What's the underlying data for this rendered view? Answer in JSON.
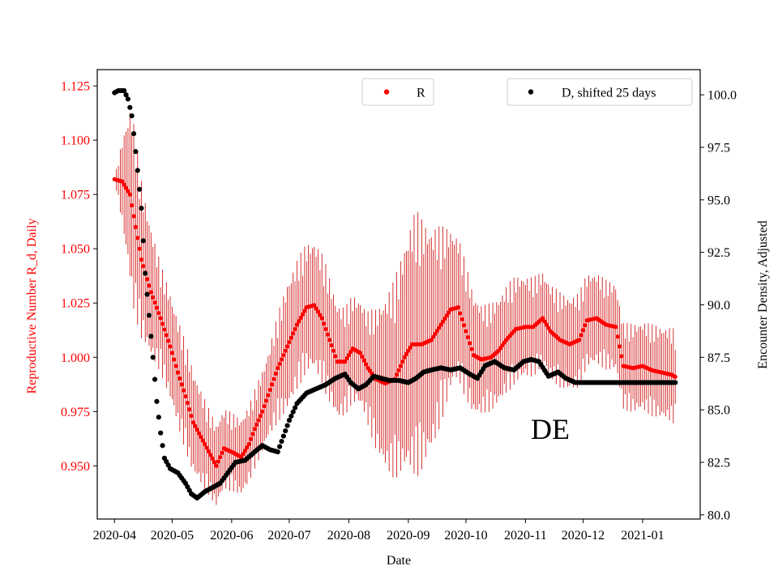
{
  "chart_data": {
    "type": "scatter",
    "xlabel": "Date",
    "ylabel_left": "Reproductive Number R_d, Daily",
    "ylabel_right": "Encounter Density, Adjusted",
    "annotation": "DE",
    "colors": {
      "left_axis": "#ff0000",
      "right_axis": "#000000",
      "R": "#ff0000",
      "D": "#000000",
      "errorbar": "#cc0000"
    },
    "x_range": [
      "2020-03-23",
      "2021-01-31"
    ],
    "x_ticks": [
      {
        "date": "2020-04-01",
        "label": "2020-04"
      },
      {
        "date": "2020-05-01",
        "label": "2020-05"
      },
      {
        "date": "2020-06-01",
        "label": "2020-06"
      },
      {
        "date": "2020-07-01",
        "label": "2020-07"
      },
      {
        "date": "2020-08-01",
        "label": "2020-08"
      },
      {
        "date": "2020-09-01",
        "label": "2020-09"
      },
      {
        "date": "2020-10-01",
        "label": "2020-10"
      },
      {
        "date": "2020-11-01",
        "label": "2020-11"
      },
      {
        "date": "2020-12-01",
        "label": "2020-12"
      },
      {
        "date": "2021-01-01",
        "label": "2021-01"
      }
    ],
    "ylim_left": [
      0.9255,
      1.1325
    ],
    "y_ticks_left": [
      0.95,
      0.975,
      1.0,
      1.025,
      1.05,
      1.075,
      1.1,
      1.125
    ],
    "y_tick_labels_left": [
      "0.950",
      "0.975",
      "1.000",
      "1.025",
      "1.050",
      "1.075",
      "1.100",
      "1.125"
    ],
    "ylim_right": [
      79.8,
      101.2
    ],
    "y_ticks_right": [
      80.0,
      82.5,
      85.0,
      87.5,
      90.0,
      92.5,
      95.0,
      97.5,
      100.0
    ],
    "y_tick_labels_right": [
      "80.0",
      "82.5",
      "85.0",
      "87.5",
      "90.0",
      "92.5",
      "95.0",
      "97.5",
      "100.0"
    ],
    "legends": [
      {
        "label": "R",
        "series": "R",
        "location": "upper-center"
      },
      {
        "label": "D, shifted 25 days",
        "series": "D",
        "location": "upper-right"
      }
    ],
    "series": [
      {
        "name": "R",
        "axis": "left",
        "marker": "dot",
        "points": [
          [
            "2020-04-01",
            1.082
          ],
          [
            "2020-04-05",
            1.081
          ],
          [
            "2020-04-09",
            1.075
          ],
          [
            "2020-04-12",
            1.06
          ],
          [
            "2020-04-15",
            1.045
          ],
          [
            "2020-04-20",
            1.03
          ],
          [
            "2020-04-25",
            1.018
          ],
          [
            "2020-04-30",
            1.005
          ],
          [
            "2020-05-04",
            0.993
          ],
          [
            "2020-05-08",
            0.982
          ],
          [
            "2020-05-12",
            0.97
          ],
          [
            "2020-05-18",
            0.96
          ],
          [
            "2020-05-24",
            0.95
          ],
          [
            "2020-05-28",
            0.958
          ],
          [
            "2020-06-02",
            0.956
          ],
          [
            "2020-06-06",
            0.954
          ],
          [
            "2020-06-10",
            0.96
          ],
          [
            "2020-06-13",
            0.967
          ],
          [
            "2020-06-17",
            0.975
          ],
          [
            "2020-06-21",
            0.985
          ],
          [
            "2020-06-25",
            0.995
          ],
          [
            "2020-06-30",
            1.005
          ],
          [
            "2020-07-05",
            1.015
          ],
          [
            "2020-07-10",
            1.023
          ],
          [
            "2020-07-14",
            1.024
          ],
          [
            "2020-07-18",
            1.018
          ],
          [
            "2020-07-22",
            1.008
          ],
          [
            "2020-07-26",
            0.998
          ],
          [
            "2020-07-30",
            0.998
          ],
          [
            "2020-08-03",
            1.004
          ],
          [
            "2020-08-07",
            1.002
          ],
          [
            "2020-08-11",
            0.995
          ],
          [
            "2020-08-15",
            0.99
          ],
          [
            "2020-08-20",
            0.988
          ],
          [
            "2020-08-25",
            0.99
          ],
          [
            "2020-08-30",
            1.0
          ],
          [
            "2020-09-03",
            1.006
          ],
          [
            "2020-09-08",
            1.006
          ],
          [
            "2020-09-13",
            1.008
          ],
          [
            "2020-09-18",
            1.015
          ],
          [
            "2020-09-23",
            1.022
          ],
          [
            "2020-09-27",
            1.023
          ],
          [
            "2020-10-01",
            1.012
          ],
          [
            "2020-10-05",
            1.001
          ],
          [
            "2020-10-09",
            0.999
          ],
          [
            "2020-10-14",
            1.0
          ],
          [
            "2020-10-18",
            1.003
          ],
          [
            "2020-10-22",
            1.008
          ],
          [
            "2020-10-27",
            1.013
          ],
          [
            "2020-11-01",
            1.014
          ],
          [
            "2020-11-05",
            1.014
          ],
          [
            "2020-11-10",
            1.018
          ],
          [
            "2020-11-14",
            1.012
          ],
          [
            "2020-11-19",
            1.008
          ],
          [
            "2020-11-24",
            1.006
          ],
          [
            "2020-11-29",
            1.008
          ],
          [
            "2020-12-03",
            1.017
          ],
          [
            "2020-12-08",
            1.018
          ],
          [
            "2020-12-13",
            1.015
          ],
          [
            "2020-12-18",
            1.014
          ],
          [
            "2020-12-22",
            0.996
          ],
          [
            "2020-12-27",
            0.995
          ],
          [
            "2021-01-01",
            0.996
          ],
          [
            "2021-01-06",
            0.994
          ],
          [
            "2021-01-11",
            0.993
          ],
          [
            "2021-01-16",
            0.992
          ],
          [
            "2021-01-18",
            0.991
          ]
        ],
        "error": [
          [
            "2020-04-01",
            0.0
          ],
          [
            "2020-04-06",
            0.025
          ],
          [
            "2020-04-10",
            0.045
          ],
          [
            "2020-04-16",
            0.035
          ],
          [
            "2020-04-25",
            0.025
          ],
          [
            "2020-05-10",
            0.025
          ],
          [
            "2020-05-20",
            0.02
          ],
          [
            "2020-06-02",
            0.018
          ],
          [
            "2020-06-12",
            0.018
          ],
          [
            "2020-06-20",
            0.02
          ],
          [
            "2020-06-30",
            0.03
          ],
          [
            "2020-07-10",
            0.03
          ],
          [
            "2020-07-20",
            0.03
          ],
          [
            "2020-07-30",
            0.025
          ],
          [
            "2020-08-10",
            0.025
          ],
          [
            "2020-08-20",
            0.04
          ],
          [
            "2020-08-28",
            0.05
          ],
          [
            "2020-09-05",
            0.062
          ],
          [
            "2020-09-15",
            0.05
          ],
          [
            "2020-09-25",
            0.035
          ],
          [
            "2020-10-10",
            0.025
          ],
          [
            "2020-10-25",
            0.025
          ],
          [
            "2020-11-10",
            0.022
          ],
          [
            "2020-12-01",
            0.022
          ],
          [
            "2020-12-20",
            0.02
          ],
          [
            "2021-01-18",
            0.022
          ]
        ]
      },
      {
        "name": "D",
        "label": "D, shifted 25 days",
        "axis": "right",
        "marker": "dot",
        "points": [
          [
            "2020-04-01",
            100.1
          ],
          [
            "2020-04-03",
            100.2
          ],
          [
            "2020-04-06",
            100.2
          ],
          [
            "2020-04-08",
            99.8
          ],
          [
            "2020-04-10",
            99.0
          ],
          [
            "2020-04-12",
            97.3
          ],
          [
            "2020-04-15",
            94.6
          ],
          [
            "2020-04-17",
            91.5
          ],
          [
            "2020-04-19",
            89.5
          ],
          [
            "2020-04-21",
            87.5
          ],
          [
            "2020-04-23",
            85.4
          ],
          [
            "2020-04-25",
            83.9
          ],
          [
            "2020-04-27",
            82.7
          ],
          [
            "2020-04-30",
            82.2
          ],
          [
            "2020-05-04",
            82.0
          ],
          [
            "2020-05-08",
            81.5
          ],
          [
            "2020-05-11",
            81.0
          ],
          [
            "2020-05-14",
            80.8
          ],
          [
            "2020-05-18",
            81.1
          ],
          [
            "2020-05-22",
            81.3
          ],
          [
            "2020-05-26",
            81.5
          ],
          [
            "2020-05-30",
            82.0
          ],
          [
            "2020-06-03",
            82.5
          ],
          [
            "2020-06-08",
            82.6
          ],
          [
            "2020-06-13",
            83.0
          ],
          [
            "2020-06-17",
            83.3
          ],
          [
            "2020-06-21",
            83.1
          ],
          [
            "2020-06-25",
            83.0
          ],
          [
            "2020-06-27",
            83.5
          ],
          [
            "2020-07-01",
            84.5
          ],
          [
            "2020-07-05",
            85.3
          ],
          [
            "2020-07-10",
            85.8
          ],
          [
            "2020-07-15",
            86.0
          ],
          [
            "2020-07-20",
            86.2
          ],
          [
            "2020-07-25",
            86.5
          ],
          [
            "2020-07-30",
            86.7
          ],
          [
            "2020-08-02",
            86.3
          ],
          [
            "2020-08-06",
            86.0
          ],
          [
            "2020-08-10",
            86.2
          ],
          [
            "2020-08-14",
            86.6
          ],
          [
            "2020-08-18",
            86.5
          ],
          [
            "2020-08-22",
            86.4
          ],
          [
            "2020-08-27",
            86.4
          ],
          [
            "2020-09-01",
            86.3
          ],
          [
            "2020-09-05",
            86.5
          ],
          [
            "2020-09-09",
            86.8
          ],
          [
            "2020-09-13",
            86.9
          ],
          [
            "2020-09-18",
            87.0
          ],
          [
            "2020-09-23",
            86.9
          ],
          [
            "2020-09-28",
            87.0
          ],
          [
            "2020-10-03",
            86.7
          ],
          [
            "2020-10-07",
            86.5
          ],
          [
            "2020-10-11",
            87.1
          ],
          [
            "2020-10-16",
            87.3
          ],
          [
            "2020-10-21",
            87.0
          ],
          [
            "2020-10-26",
            86.9
          ],
          [
            "2020-10-31",
            87.3
          ],
          [
            "2020-11-04",
            87.4
          ],
          [
            "2020-11-08",
            87.3
          ],
          [
            "2020-11-13",
            86.6
          ],
          [
            "2020-11-18",
            86.8
          ],
          [
            "2020-11-22",
            86.5
          ],
          [
            "2020-11-27",
            86.3
          ],
          [
            "2020-12-05",
            86.3
          ],
          [
            "2020-12-15",
            86.3
          ],
          [
            "2020-12-25",
            86.3
          ],
          [
            "2021-01-05",
            86.3
          ],
          [
            "2021-01-18",
            86.3
          ]
        ]
      }
    ]
  }
}
